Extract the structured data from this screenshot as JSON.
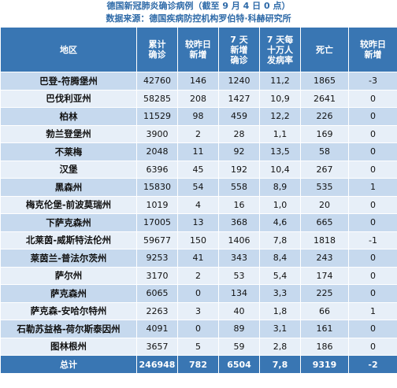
{
  "title": "德国新冠肺炎确诊病例（截至 9 月 4 日 0 点）",
  "source": "数据来源：德国疾病防控机构罗伯特·科赫研究所",
  "headers": {
    "region": "地区",
    "total_l1": "累计",
    "total_l2": "确诊",
    "new_l1": "较昨日",
    "new_l2": "新增",
    "new7_l1": "7 天",
    "new7_l2": "新增",
    "new7_l3": "确诊",
    "inc_l1": "7 天每",
    "inc_l2": "十万人",
    "inc_l3": "发病率",
    "deaths": "死亡",
    "new_deaths_l1": "较昨日",
    "new_deaths_l2": "新增"
  },
  "rows": [
    {
      "region": "巴登-符腾堡州",
      "total": "42760",
      "new": "146",
      "new7": "1240",
      "incidence": "11,2",
      "deaths": "1865",
      "new_deaths": "-3"
    },
    {
      "region": "巴伐利亚州",
      "total": "58285",
      "new": "208",
      "new7": "1427",
      "incidence": "10,9",
      "deaths": "2641",
      "new_deaths": "0"
    },
    {
      "region": "柏林",
      "total": "11529",
      "new": "98",
      "new7": "459",
      "incidence": "12,2",
      "deaths": "226",
      "new_deaths": "0"
    },
    {
      "region": "勃兰登堡州",
      "total": "3900",
      "new": "2",
      "new7": "28",
      "incidence": "1,1",
      "deaths": "169",
      "new_deaths": "0"
    },
    {
      "region": "不莱梅",
      "total": "2048",
      "new": "11",
      "new7": "92",
      "incidence": "13,5",
      "deaths": "58",
      "new_deaths": "0"
    },
    {
      "region": "汉堡",
      "total": "6396",
      "new": "45",
      "new7": "192",
      "incidence": "10,4",
      "deaths": "267",
      "new_deaths": "0"
    },
    {
      "region": "黑森州",
      "total": "15830",
      "new": "54",
      "new7": "558",
      "incidence": "8,9",
      "deaths": "535",
      "new_deaths": "1"
    },
    {
      "region": "梅克伦堡-前波莫瑞州",
      "total": "1019",
      "new": "4",
      "new7": "16",
      "incidence": "1,0",
      "deaths": "20",
      "new_deaths": "0"
    },
    {
      "region": "下萨克森州",
      "total": "17005",
      "new": "13",
      "new7": "368",
      "incidence": "4,6",
      "deaths": "665",
      "new_deaths": "0"
    },
    {
      "region": "北莱茵-威斯特法伦州",
      "total": "59677",
      "new": "150",
      "new7": "1406",
      "incidence": "7,8",
      "deaths": "1818",
      "new_deaths": "-1"
    },
    {
      "region": "莱茵兰-普法尔茨州",
      "total": "9253",
      "new": "41",
      "new7": "343",
      "incidence": "8,4",
      "deaths": "243",
      "new_deaths": "0"
    },
    {
      "region": "萨尔州",
      "total": "3170",
      "new": "2",
      "new7": "53",
      "incidence": "5,4",
      "deaths": "174",
      "new_deaths": "0"
    },
    {
      "region": "萨克森州",
      "total": "6065",
      "new": "0",
      "new7": "134",
      "incidence": "3,3",
      "deaths": "225",
      "new_deaths": "0"
    },
    {
      "region": "萨克森-安哈尔特州",
      "total": "2263",
      "new": "3",
      "new7": "40",
      "incidence": "1,8",
      "deaths": "66",
      "new_deaths": "1"
    },
    {
      "region": "石勒苏益格-荷尔斯泰因州",
      "total": "4091",
      "new": "0",
      "new7": "89",
      "incidence": "3,1",
      "deaths": "161",
      "new_deaths": "0"
    },
    {
      "region": "图林根州",
      "total": "3657",
      "new": "5",
      "new7": "59",
      "incidence": "2,8",
      "deaths": "186",
      "new_deaths": "0"
    }
  ],
  "total": {
    "region": "总计",
    "total": "246948",
    "new": "782",
    "new7": "6504",
    "incidence": "7,8",
    "deaths": "9319",
    "new_deaths": "-2"
  }
}
